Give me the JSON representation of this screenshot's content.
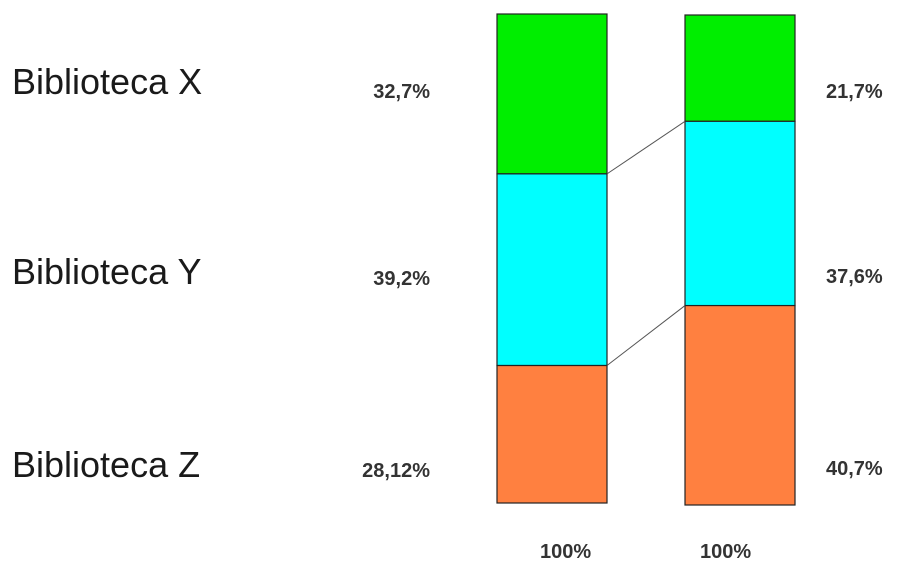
{
  "chart_data": {
    "type": "bar",
    "stacked": true,
    "normalized": true,
    "categories": [
      "Biblioteca X",
      "Biblioteca Y",
      "Biblioteca Z"
    ],
    "columns": [
      {
        "values": [
          32.7,
          39.2,
          28.12
        ],
        "value_labels": [
          "32,7%",
          "39,2%",
          "28,12%"
        ],
        "total_label": "100%"
      },
      {
        "values": [
          21.7,
          37.6,
          40.7
        ],
        "value_labels": [
          "21,7%",
          "37,6%",
          "40,7%"
        ],
        "total_label": "100%"
      }
    ],
    "colors": [
      "#00ee00",
      "#00ffff",
      "#ff8040"
    ],
    "connector_lines": true,
    "grid": false,
    "legend": "none"
  }
}
